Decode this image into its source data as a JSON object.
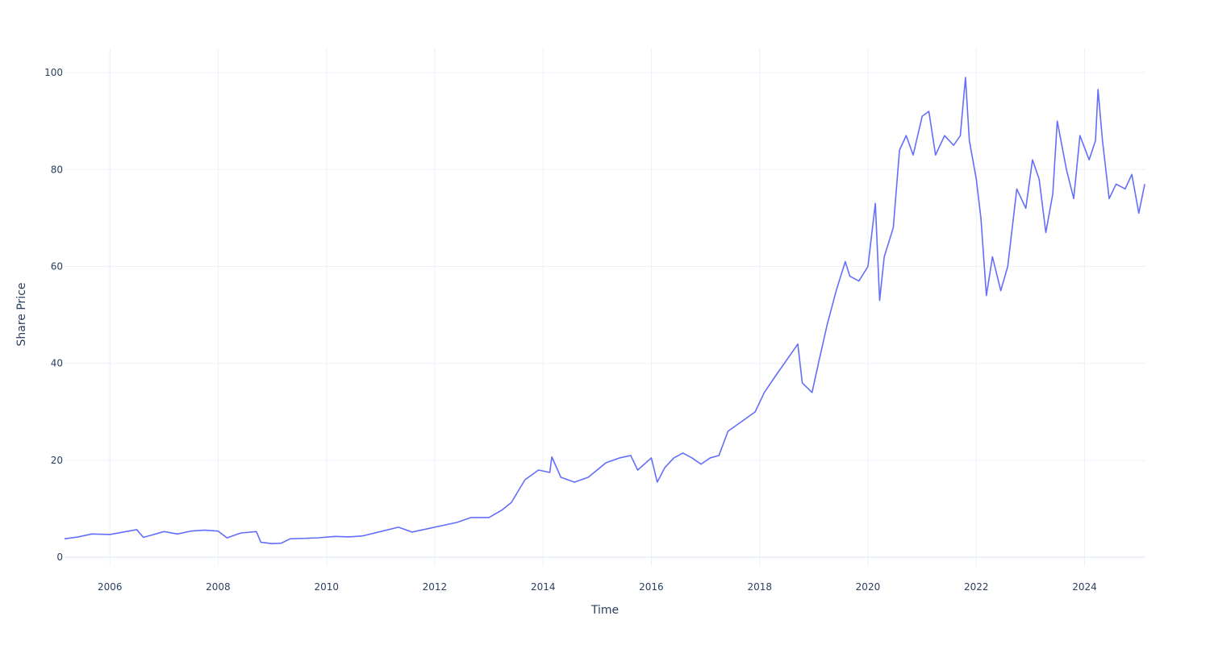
{
  "chart_data": {
    "type": "line",
    "title": "",
    "xlabel": "Time",
    "ylabel": "Share Price",
    "grid": true,
    "legend": "none",
    "xlim": [
      "2005-03-01",
      "2025-02-15"
    ],
    "ylim": [
      -1.8,
      105
    ],
    "x_ticks": [
      "2006",
      "2008",
      "2010",
      "2012",
      "2014",
      "2016",
      "2018",
      "2020",
      "2022",
      "2024"
    ],
    "y_ticks": [
      0,
      20,
      40,
      60,
      80,
      100
    ],
    "colors": {
      "line": "#636efa",
      "grid": "#ebf0f8",
      "zeroline": "#ebf0f8",
      "text": "#2a3f5f"
    },
    "series": [
      {
        "x": [
          "2005-03-01",
          "2005-06-01",
          "2005-09-01",
          "2006-01-01",
          "2006-04-01",
          "2006-07-01",
          "2006-08-15",
          "2006-10-01",
          "2007-01-01",
          "2007-04-01",
          "2007-07-01",
          "2007-10-01",
          "2008-01-01",
          "2008-03-01",
          "2008-06-01",
          "2008-09-15",
          "2008-10-15",
          "2009-01-01",
          "2009-03-01",
          "2009-05-01",
          "2009-08-01",
          "2009-11-01",
          "2010-03-01",
          "2010-06-01",
          "2010-09-01",
          "2011-01-01",
          "2011-05-01",
          "2011-08-01",
          "2011-11-01",
          "2012-03-01",
          "2012-06-01",
          "2012-09-01",
          "2013-01-01",
          "2013-04-01",
          "2013-06-01",
          "2013-09-01",
          "2013-12-01",
          "2014-02-15",
          "2014-03-01",
          "2014-05-01",
          "2014-08-01",
          "2014-11-01",
          "2015-03-01",
          "2015-06-01",
          "2015-08-15",
          "2015-10-01",
          "2016-01-01",
          "2016-02-10",
          "2016-04-01",
          "2016-06-01",
          "2016-08-01",
          "2016-10-01",
          "2016-12-01",
          "2017-02-01",
          "2017-04-01",
          "2017-06-01",
          "2017-09-01",
          "2017-12-01",
          "2018-02-01",
          "2018-05-01",
          "2018-08-01",
          "2018-09-15",
          "2018-10-15",
          "2018-12-20",
          "2019-02-01",
          "2019-04-01",
          "2019-06-01",
          "2019-08-01",
          "2019-09-01",
          "2019-11-01",
          "2020-01-01",
          "2020-02-20",
          "2020-03-20",
          "2020-04-20",
          "2020-06-20",
          "2020-08-01",
          "2020-09-15",
          "2020-11-01",
          "2021-01-01",
          "2021-02-15",
          "2021-04-01",
          "2021-06-01",
          "2021-08-01",
          "2021-09-15",
          "2021-10-20",
          "2021-11-15",
          "2022-01-01",
          "2022-02-01",
          "2022-03-10",
          "2022-04-20",
          "2022-06-15",
          "2022-08-01",
          "2022-10-01",
          "2022-12-01",
          "2023-01-15",
          "2023-03-01",
          "2023-04-15",
          "2023-06-01",
          "2023-07-01",
          "2023-09-01",
          "2023-10-20",
          "2023-12-01",
          "2024-02-01",
          "2024-03-15",
          "2024-04-01",
          "2024-05-01",
          "2024-06-15",
          "2024-08-01",
          "2024-10-01",
          "2024-11-15",
          "2025-01-01",
          "2025-02-10"
        ],
        "y": [
          3.8,
          4.2,
          4.8,
          4.7,
          5.2,
          5.7,
          4.1,
          4.5,
          5.3,
          4.8,
          5.4,
          5.6,
          5.4,
          4.0,
          5.0,
          5.3,
          3.1,
          2.8,
          2.9,
          3.8,
          3.9,
          4.0,
          4.3,
          4.2,
          4.4,
          5.3,
          6.2,
          5.2,
          5.8,
          6.6,
          7.2,
          8.2,
          8.2,
          9.8,
          11.3,
          16.0,
          18.0,
          17.5,
          20.7,
          16.5,
          15.5,
          16.5,
          19.5,
          20.5,
          21.0,
          18.0,
          20.5,
          15.5,
          18.5,
          20.5,
          21.5,
          20.5,
          19.2,
          20.5,
          21.0,
          26.0,
          28.0,
          30.0,
          34.0,
          38.0,
          42.0,
          44.0,
          36.0,
          34.0,
          40.0,
          48.0,
          55.0,
          61.0,
          58.0,
          57.0,
          60.0,
          73.0,
          53.0,
          62.0,
          68.0,
          84.0,
          87.0,
          83.0,
          91.0,
          92.0,
          83.0,
          87.0,
          85.0,
          87.0,
          99.0,
          86.0,
          78.0,
          70.0,
          54.0,
          62.0,
          55.0,
          60.0,
          76.0,
          72.0,
          82.0,
          78.0,
          67.0,
          75.0,
          90.0,
          80.0,
          74.0,
          87.0,
          82.0,
          86.0,
          96.5,
          86.0,
          74.0,
          77.0,
          76.0,
          79.0,
          71.0,
          77.0
        ]
      }
    ]
  }
}
